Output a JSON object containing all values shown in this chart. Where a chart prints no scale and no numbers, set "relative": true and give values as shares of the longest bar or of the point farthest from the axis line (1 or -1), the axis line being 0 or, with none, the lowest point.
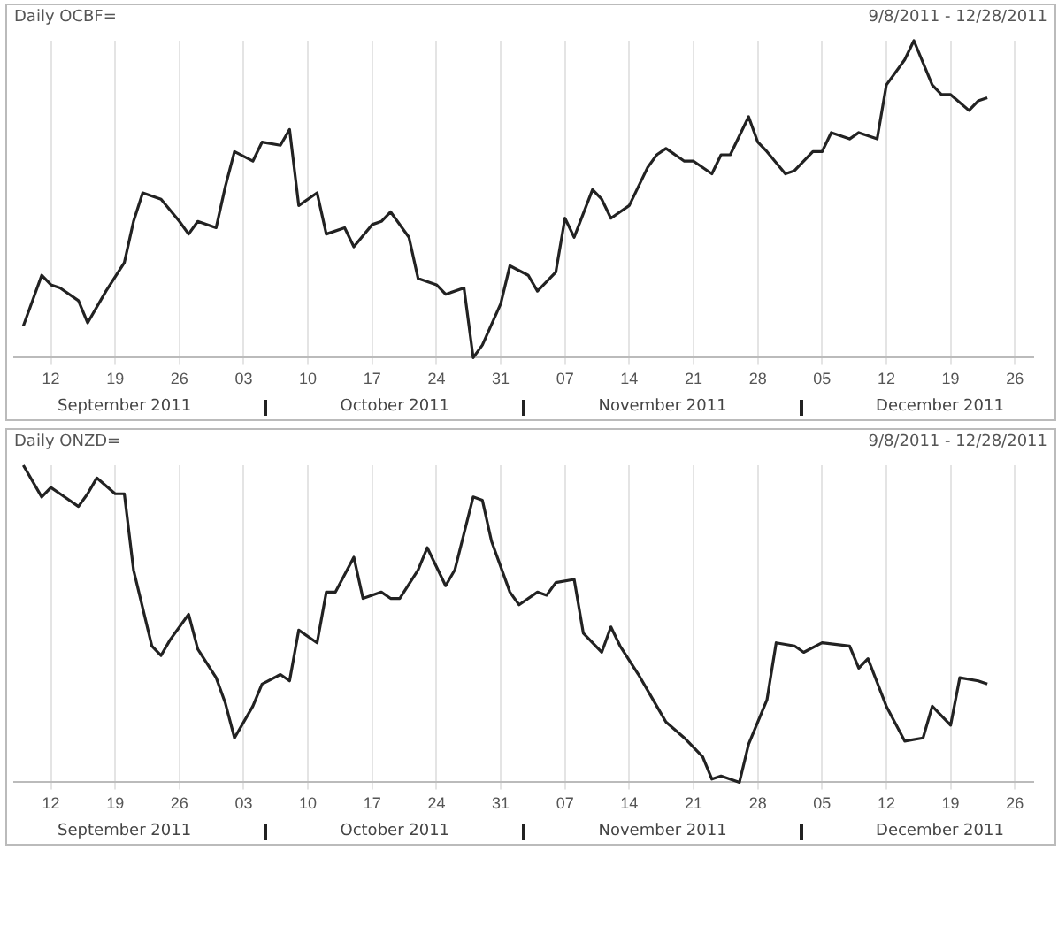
{
  "chart_data": [
    {
      "type": "line",
      "title": "Daily OCBF=",
      "subtitle": "9/8/2011 - 12/28/2011",
      "relative": true,
      "color": "#222222",
      "grid": "x",
      "marker": "none",
      "legend": false,
      "x": [
        "2011-09-09",
        "2011-09-11",
        "2011-09-12",
        "2011-09-13",
        "2011-09-15",
        "2011-09-16",
        "2011-09-18",
        "2011-09-20",
        "2011-09-21",
        "2011-09-22",
        "2011-09-24",
        "2011-09-26",
        "2011-09-27",
        "2011-09-28",
        "2011-09-30",
        "2011-10-01",
        "2011-10-02",
        "2011-10-04",
        "2011-10-05",
        "2011-10-07",
        "2011-10-08",
        "2011-10-09",
        "2011-10-11",
        "2011-10-12",
        "2011-10-14",
        "2011-10-15",
        "2011-10-17",
        "2011-10-18",
        "2011-10-19",
        "2011-10-21",
        "2011-10-22",
        "2011-10-24",
        "2011-10-25",
        "2011-10-27",
        "2011-10-28",
        "2011-10-29",
        "2011-10-31",
        "2011-11-01",
        "2011-11-03",
        "2011-11-04",
        "2011-11-06",
        "2011-11-07",
        "2011-11-08",
        "2011-11-10",
        "2011-11-11",
        "2011-11-12",
        "2011-11-14",
        "2011-11-16",
        "2011-11-17",
        "2011-11-18",
        "2011-11-20",
        "2011-11-21",
        "2011-11-23",
        "2011-11-24",
        "2011-11-25",
        "2011-11-27",
        "2011-11-28",
        "2011-11-29",
        "2011-12-01",
        "2011-12-02",
        "2011-12-04",
        "2011-12-05",
        "2011-12-06",
        "2011-12-08",
        "2011-12-09",
        "2011-12-11",
        "2011-12-12",
        "2011-12-14",
        "2011-12-15",
        "2011-12-17",
        "2011-12-18",
        "2011-12-19",
        "2011-12-21",
        "2011-12-22",
        "2011-12-23"
      ],
      "values": [
        0.1,
        0.26,
        0.23,
        0.22,
        0.18,
        0.11,
        0.21,
        0.3,
        0.43,
        0.52,
        0.5,
        0.43,
        0.39,
        0.43,
        0.41,
        0.54,
        0.65,
        0.62,
        0.68,
        0.67,
        0.72,
        0.48,
        0.52,
        0.39,
        0.41,
        0.35,
        0.42,
        0.43,
        0.46,
        0.38,
        0.25,
        0.23,
        0.2,
        0.22,
        0,
        0.04,
        0.17,
        0.29,
        0.26,
        0.21,
        0.27,
        0.44,
        0.38,
        0.53,
        0.5,
        0.44,
        0.48,
        0.6,
        0.64,
        0.66,
        0.62,
        0.62,
        0.58,
        0.64,
        0.64,
        0.76,
        0.68,
        0.65,
        0.58,
        0.59,
        0.65,
        0.65,
        0.71,
        0.69,
        0.71,
        0.69,
        0.86,
        0.94,
        1,
        0.86,
        0.83,
        0.83,
        0.78,
        0.81,
        0.82
      ],
      "xlim": [
        "2011-09-08",
        "2011-12-28"
      ],
      "xticks": [
        {
          "value": "2011-09-12",
          "label": "12"
        },
        {
          "value": "2011-09-19",
          "label": "19"
        },
        {
          "value": "2011-09-26",
          "label": "26"
        },
        {
          "value": "2011-10-03",
          "label": "03"
        },
        {
          "value": "2011-10-10",
          "label": "10"
        },
        {
          "value": "2011-10-17",
          "label": "17"
        },
        {
          "value": "2011-10-24",
          "label": "24"
        },
        {
          "value": "2011-10-31",
          "label": "31"
        },
        {
          "value": "2011-11-07",
          "label": "07"
        },
        {
          "value": "2011-11-14",
          "label": "14"
        },
        {
          "value": "2011-11-21",
          "label": "21"
        },
        {
          "value": "2011-11-28",
          "label": "28"
        },
        {
          "value": "2011-12-05",
          "label": "05"
        },
        {
          "value": "2011-12-12",
          "label": "12"
        },
        {
          "value": "2011-12-19",
          "label": "19"
        },
        {
          "value": "2011-12-26",
          "label": "26"
        }
      ],
      "annotations": [
        "September 2011",
        "October 2011",
        "November 2011",
        "December 2011"
      ]
    },
    {
      "type": "line",
      "title": "Daily ONZD=",
      "subtitle": "9/8/2011 - 12/28/2011",
      "relative": true,
      "color": "#222222",
      "grid": "x",
      "marker": "none",
      "legend": false,
      "x": [
        "2011-09-09",
        "2011-09-11",
        "2011-09-12",
        "2011-09-13",
        "2011-09-15",
        "2011-09-16",
        "2011-09-17",
        "2011-09-19",
        "2011-09-20",
        "2011-09-21",
        "2011-09-23",
        "2011-09-24",
        "2011-09-25",
        "2011-09-27",
        "2011-09-28",
        "2011-09-30",
        "2011-10-01",
        "2011-10-02",
        "2011-10-04",
        "2011-10-05",
        "2011-10-07",
        "2011-10-08",
        "2011-10-09",
        "2011-10-11",
        "2011-10-12",
        "2011-10-13",
        "2011-10-15",
        "2011-10-16",
        "2011-10-18",
        "2011-10-19",
        "2011-10-20",
        "2011-10-22",
        "2011-10-23",
        "2011-10-25",
        "2011-10-26",
        "2011-10-28",
        "2011-10-29",
        "2011-10-30",
        "2011-11-01",
        "2011-11-02",
        "2011-11-04",
        "2011-11-05",
        "2011-11-06",
        "2011-11-08",
        "2011-11-09",
        "2011-11-11",
        "2011-11-12",
        "2011-11-13",
        "2011-11-15",
        "2011-11-17",
        "2011-11-18",
        "2011-11-20",
        "2011-11-22",
        "2011-11-23",
        "2011-11-24",
        "2011-11-26",
        "2011-11-27",
        "2011-11-29",
        "2011-11-30",
        "2011-12-02",
        "2011-12-03",
        "2011-12-05",
        "2011-12-08",
        "2011-12-09",
        "2011-12-10",
        "2011-12-12",
        "2011-12-14",
        "2011-12-16",
        "2011-12-17",
        "2011-12-19",
        "2011-12-20",
        "2011-12-22",
        "2011-12-23"
      ],
      "values": [
        1,
        0.9,
        0.93,
        0.91,
        0.87,
        0.91,
        0.96,
        0.91,
        0.91,
        0.67,
        0.43,
        0.4,
        0.45,
        0.53,
        0.42,
        0.33,
        0.25,
        0.14,
        0.24,
        0.31,
        0.34,
        0.32,
        0.48,
        0.44,
        0.6,
        0.6,
        0.71,
        0.58,
        0.6,
        0.58,
        0.58,
        0.67,
        0.74,
        0.62,
        0.67,
        0.9,
        0.89,
        0.76,
        0.6,
        0.56,
        0.6,
        0.59,
        0.63,
        0.64,
        0.47,
        0.41,
        0.49,
        0.43,
        0.34,
        0.24,
        0.19,
        0.14,
        0.08,
        0.01,
        0.02,
        0,
        0.12,
        0.26,
        0.44,
        0.43,
        0.41,
        0.44,
        0.43,
        0.36,
        0.39,
        0.24,
        0.13,
        0.14,
        0.24,
        0.18,
        0.33,
        0.32,
        0.31
      ],
      "xlim": [
        "2011-09-08",
        "2011-12-28"
      ],
      "xticks": [
        {
          "value": "2011-09-12",
          "label": "12"
        },
        {
          "value": "2011-09-19",
          "label": "19"
        },
        {
          "value": "2011-09-26",
          "label": "26"
        },
        {
          "value": "2011-10-03",
          "label": "03"
        },
        {
          "value": "2011-10-10",
          "label": "10"
        },
        {
          "value": "2011-10-17",
          "label": "17"
        },
        {
          "value": "2011-10-24",
          "label": "24"
        },
        {
          "value": "2011-10-31",
          "label": "31"
        },
        {
          "value": "2011-11-07",
          "label": "07"
        },
        {
          "value": "2011-11-14",
          "label": "14"
        },
        {
          "value": "2011-11-21",
          "label": "21"
        },
        {
          "value": "2011-11-28",
          "label": "28"
        },
        {
          "value": "2011-12-05",
          "label": "05"
        },
        {
          "value": "2011-12-12",
          "label": "12"
        },
        {
          "value": "2011-12-19",
          "label": "19"
        },
        {
          "value": "2011-12-26",
          "label": "26"
        }
      ],
      "annotations": [
        "September 2011",
        "October 2011",
        "November 2011",
        "December 2011"
      ]
    }
  ]
}
